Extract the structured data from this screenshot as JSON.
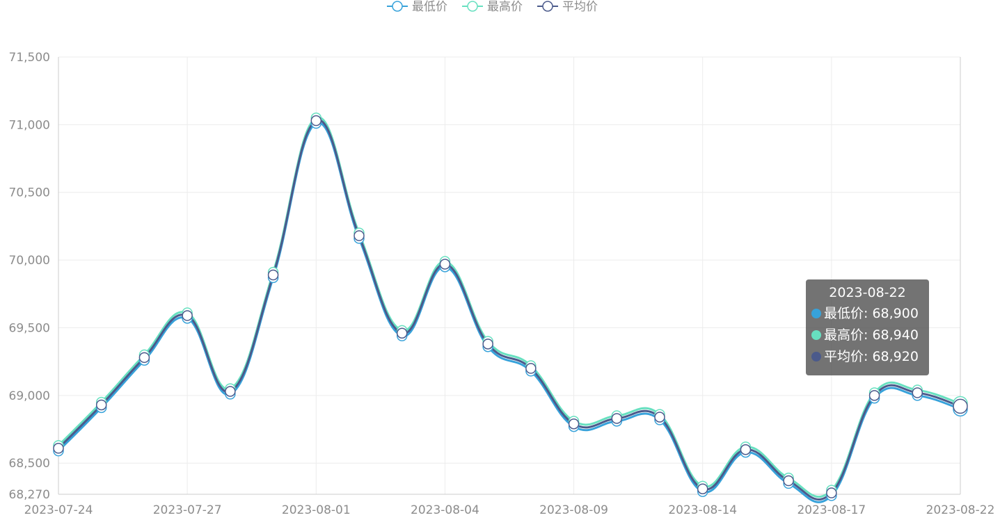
{
  "chart_data": {
    "type": "line",
    "categories": [
      "2023-07-24",
      null,
      null,
      "2023-07-27",
      null,
      null,
      "2023-08-01",
      null,
      null,
      "2023-08-04",
      null,
      null,
      "2023-08-09",
      null,
      null,
      "2023-08-14",
      null,
      null,
      "2023-08-17",
      null,
      null,
      "2023-08-22"
    ],
    "series": [
      {
        "name": "最低价",
        "color": "#37a2da",
        "values": [
          68590,
          68910,
          69260,
          69570,
          69010,
          69870,
          71010,
          70160,
          69440,
          69950,
          69360,
          69180,
          68770,
          68810,
          68820,
          68290,
          68580,
          68350,
          68260,
          68980,
          69000,
          68900
        ],
        "value_labels": [
          null,
          null,
          null,
          null,
          null,
          null,
          null,
          null,
          null,
          null,
          null,
          null,
          null,
          null,
          null,
          null,
          null,
          null,
          null,
          null,
          null,
          "68,900"
        ]
      },
      {
        "name": "最高价",
        "color": "#67e0c0",
        "values": [
          68630,
          68950,
          69300,
          69610,
          69050,
          69910,
          71050,
          70200,
          69480,
          69990,
          69400,
          69220,
          68810,
          68850,
          68860,
          68330,
          68620,
          68390,
          68300,
          69020,
          69040,
          68940
        ],
        "value_labels": [
          null,
          null,
          null,
          null,
          null,
          null,
          null,
          null,
          null,
          null,
          null,
          null,
          null,
          null,
          null,
          null,
          null,
          null,
          null,
          null,
          null,
          "68,940"
        ]
      },
      {
        "name": "平均价",
        "color": "#4b5a8b",
        "values": [
          68610,
          68930,
          69280,
          69590,
          69030,
          69890,
          71030,
          70180,
          69460,
          69970,
          69380,
          69200,
          68790,
          68830,
          68840,
          68310,
          68600,
          68370,
          68280,
          69000,
          69020,
          68920
        ],
        "value_labels": [
          null,
          null,
          null,
          null,
          null,
          null,
          null,
          null,
          null,
          null,
          null,
          null,
          null,
          null,
          null,
          null,
          null,
          null,
          null,
          null,
          null,
          "68,920"
        ]
      }
    ],
    "ylim": [
      68270,
      71500
    ],
    "yticks": [
      {
        "value": 68270,
        "label": "68,270"
      },
      {
        "value": 68500,
        "label": "68,500"
      },
      {
        "value": 69000,
        "label": "69,000"
      },
      {
        "value": 69500,
        "label": "69,500"
      },
      {
        "value": 70000,
        "label": "70,000"
      },
      {
        "value": 70500,
        "label": "70,500"
      },
      {
        "value": 71000,
        "label": "71,000"
      },
      {
        "value": 71500,
        "label": "71,500"
      }
    ],
    "grid": true
  }
}
